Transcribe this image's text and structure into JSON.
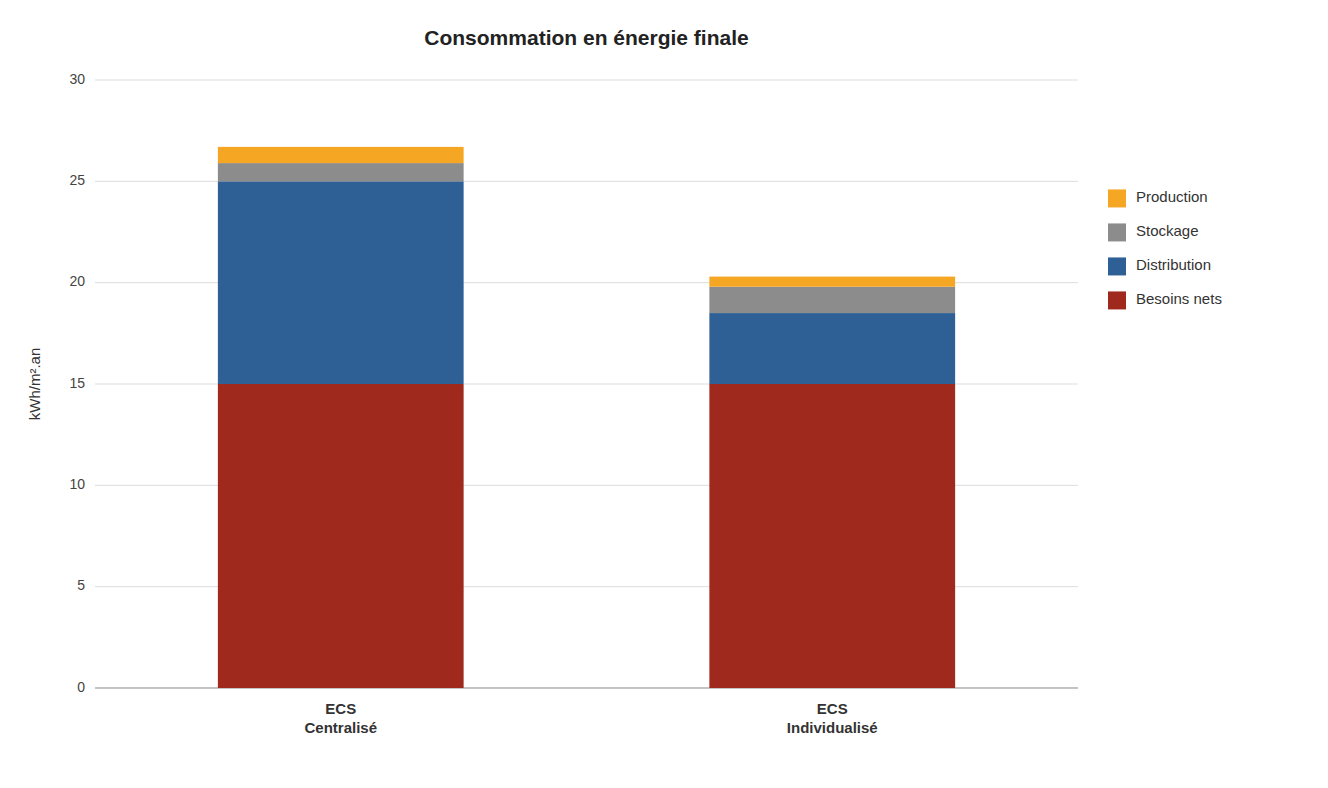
{
  "chart_data": {
    "type": "bar",
    "stacked": true,
    "title": "Consommation en énergie finale",
    "y_label": "kWh/m².an",
    "categories": [
      "ECS\nCentralisé",
      "ECS\nIndividualisé"
    ],
    "series": [
      {
        "name": "Besoins nets",
        "color": "#A0291E",
        "values": [
          15.0,
          15.0
        ]
      },
      {
        "name": "Distribution",
        "color": "#2E6096",
        "values": [
          10.0,
          3.5
        ]
      },
      {
        "name": "Stockage",
        "color": "#8C8C8C",
        "values": [
          0.9,
          1.3
        ]
      },
      {
        "name": "Production",
        "color": "#F5A623",
        "values": [
          0.8,
          0.5
        ]
      }
    ],
    "ylim": [
      0,
      30
    ],
    "yticks": [
      0,
      5,
      10,
      15,
      20,
      25,
      30
    ],
    "grid": true,
    "legend": "right"
  }
}
